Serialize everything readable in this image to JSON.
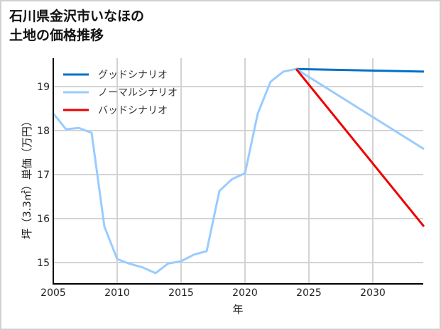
{
  "header": {
    "title_line1": "石川県金沢市いなほの",
    "title_line2": "土地の価格推移"
  },
  "chart_data": {
    "type": "line",
    "title": "石川県金沢市いなほの土地の価格推移",
    "xlabel": "年",
    "ylabel": "坪（3.3㎡）単価（万円）",
    "xlim": [
      2005,
      2034
    ],
    "ylim": [
      14.55,
      19.7
    ],
    "x_ticks": [
      "2005",
      "2010",
      "2015",
      "2020",
      "2025",
      "2030"
    ],
    "y_ticks": [
      "15",
      "16",
      "17",
      "18",
      "19"
    ],
    "grid": true,
    "legend_position": "upper left",
    "series": [
      {
        "name": "グッドシナリオ",
        "color": "#0070c8",
        "x": [
          2024,
          2034
        ],
        "values": [
          19.4,
          19.34
        ]
      },
      {
        "name": "ノーマルシナリオ",
        "color": "#99ccff",
        "x": [
          2005,
          2006,
          2007,
          2008,
          2009,
          2010,
          2011,
          2012,
          2013,
          2014,
          2015,
          2016,
          2017,
          2018,
          2019,
          2020,
          2021,
          2022,
          2023,
          2024,
          2034
        ],
        "values": [
          18.39,
          18.03,
          18.06,
          17.95,
          15.82,
          15.08,
          14.97,
          14.89,
          14.76,
          14.98,
          15.03,
          15.18,
          15.26,
          16.63,
          16.9,
          17.03,
          18.39,
          19.11,
          19.34,
          19.4,
          17.58
        ]
      },
      {
        "name": "バッドシナリオ",
        "color": "#ee0000",
        "x": [
          2024,
          2034
        ],
        "values": [
          19.4,
          15.82
        ]
      }
    ]
  }
}
